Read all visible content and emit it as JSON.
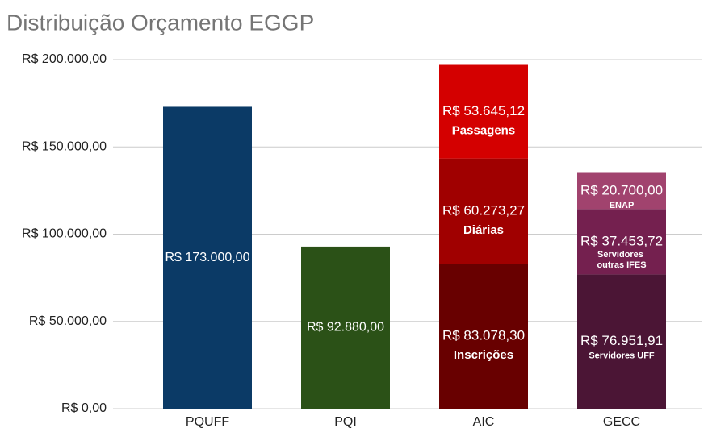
{
  "chart_data": {
    "type": "stacked_bar",
    "title": "Distribuição Orçamento EGGP",
    "categories": [
      "PQUFF",
      "PQI",
      "AIC",
      "GECC"
    ],
    "stacks": [
      {
        "segments": [
          {
            "value": 173000,
            "value_label": "R$ 173.000,00",
            "color": "#0b3a66"
          }
        ]
      },
      {
        "segments": [
          {
            "value": 92880,
            "value_label": "R$ 92.880,00",
            "color": "#2b5117"
          }
        ]
      },
      {
        "segments": [
          {
            "name": "Inscrições",
            "value": 83078.3,
            "value_label": "R$ 83.078,30",
            "color": "#680000"
          },
          {
            "name": "Diárias",
            "value": 60273.27,
            "value_label": "R$ 60.273,27",
            "color": "#a00000"
          },
          {
            "name": "Passagens",
            "value": 53645.12,
            "value_label": "R$ 53.645,12",
            "color": "#d40000"
          }
        ]
      },
      {
        "segments": [
          {
            "name": "Servidores UFF",
            "value": 76951.91,
            "value_label": "R$ 76.951,91",
            "color": "#4b1535"
          },
          {
            "name": "Servidores outras IFES",
            "value": 37453.72,
            "value_label": "R$ 37.453,72",
            "color": "#74204f"
          },
          {
            "name": "ENAP",
            "value": 20700,
            "value_label": "R$ 20.700,00",
            "color": "#a1436e"
          }
        ]
      }
    ],
    "ylim": [
      0,
      200000
    ],
    "yticks": [
      {
        "value": 0,
        "label": "R$ 0,00"
      },
      {
        "value": 50000,
        "label": "R$ 50.000,00"
      },
      {
        "value": 100000,
        "label": "R$ 100.000,00"
      },
      {
        "value": 150000,
        "label": "R$ 150.000,00"
      },
      {
        "value": 200000,
        "label": "R$ 200.000,00"
      }
    ],
    "grid": true
  }
}
